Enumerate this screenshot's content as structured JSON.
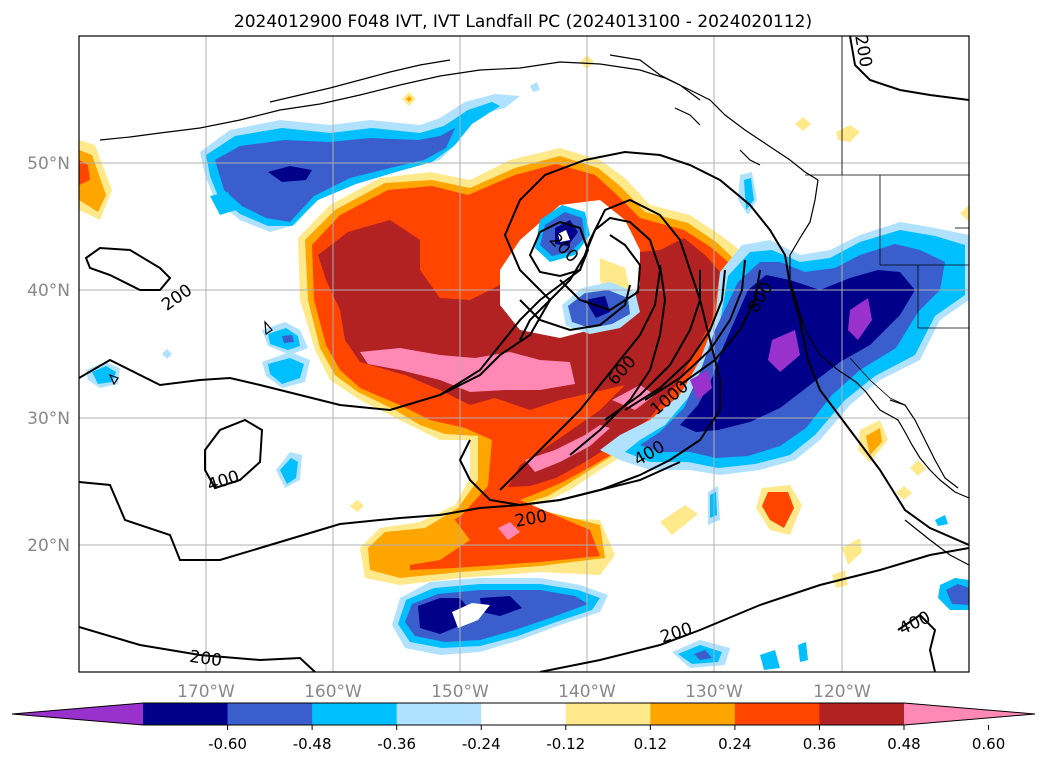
{
  "title": "2024012900 F048 IVT, IVT Landfall PC (2024013100 - 2024020112)",
  "map": {
    "lon_range": [
      -180,
      -110
    ],
    "lat_range": [
      10,
      60
    ],
    "lat_labels": [
      "20°N",
      "30°N",
      "40°N",
      "50°N"
    ],
    "lon_labels": [
      "170°W",
      "160°W",
      "150°W",
      "140°W",
      "130°W",
      "120°W"
    ],
    "gridlines": true,
    "gridline_color": "#b0b0b0",
    "coastline_color": "#000000"
  },
  "colorbar": {
    "orientation": "horizontal",
    "extend": "both",
    "tick_labels": [
      "-0.60",
      "-0.48",
      "-0.36",
      "-0.24",
      "-0.12",
      "0.12",
      "0.24",
      "0.36",
      "0.48",
      "0.60"
    ],
    "colors": [
      "#9932cc",
      "#00008b",
      "#3a5fcd",
      "#00bfff",
      "#b0e2ff",
      "#ffffff",
      "#ffe98a",
      "#ffa500",
      "#ff4500",
      "#b22222",
      "#ff88b4"
    ]
  },
  "contours": {
    "variable": "IVT",
    "labels": [
      "200",
      "200",
      "200",
      "200",
      "200",
      "200",
      "400",
      "400",
      "400",
      "600",
      "800",
      "1000",
      "200"
    ],
    "line_color": "#000000"
  },
  "shading": {
    "variable": "IVT Landfall PC",
    "positive_colors": [
      "#ffe98a",
      "#ffa500",
      "#ff4500",
      "#b22222",
      "#ff88b4"
    ],
    "negative_colors": [
      "#b0e2ff",
      "#00bfff",
      "#3a5fcd",
      "#00008b",
      "#9932cc"
    ]
  }
}
